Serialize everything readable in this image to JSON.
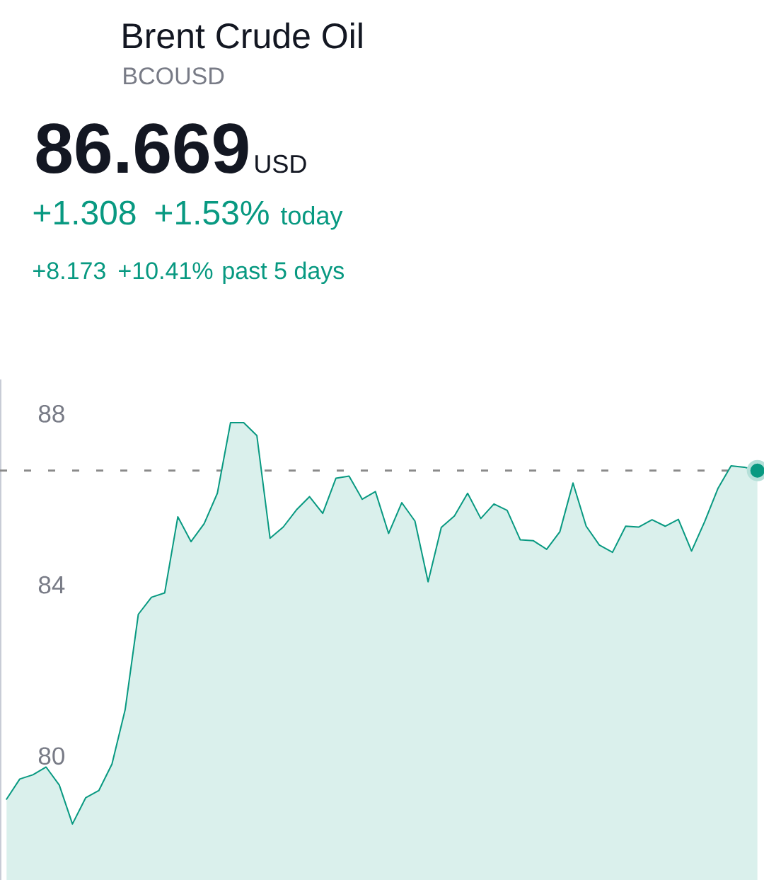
{
  "chart_data": {
    "type": "area",
    "title": "Brent Crude Oil",
    "subtitle": "BCOUSD",
    "annotations": [
      "86.669",
      "USD",
      "+1.308",
      "+1.53%",
      "today",
      "+8.173",
      "+10.41%",
      "past 5 days"
    ],
    "categories": [
      null,
      null,
      null,
      null,
      null,
      null,
      null,
      null,
      null,
      null,
      null,
      null,
      null,
      null,
      null,
      null,
      null,
      null,
      null,
      null,
      null,
      null,
      null,
      null,
      null,
      null,
      null,
      null,
      null,
      null,
      null,
      null,
      null,
      null,
      null,
      null,
      null,
      null,
      null,
      null,
      null,
      null,
      null,
      null,
      null,
      null,
      null,
      null,
      null,
      null,
      null,
      null,
      null,
      null,
      null,
      null,
      null,
      null
    ],
    "series": [
      {
        "color": "#089981",
        "values": [
          78.99,
          79.46,
          79.56,
          79.74,
          79.32,
          78.41,
          79.02,
          79.19,
          79.81,
          81.08,
          83.31,
          83.71,
          83.81,
          85.59,
          85.01,
          85.43,
          86.14,
          87.79,
          87.79,
          87.49,
          85.09,
          85.35,
          85.75,
          86.06,
          85.67,
          86.49,
          86.54,
          86.0,
          86.18,
          85.2,
          85.92,
          85.49,
          84.07,
          85.34,
          85.61,
          86.14,
          85.55,
          85.89,
          85.74,
          85.05,
          85.03,
          84.83,
          85.24,
          86.38,
          85.37,
          84.93,
          84.76,
          85.37,
          85.35,
          85.52,
          85.37,
          85.53,
          84.79,
          85.48,
          86.25,
          86.78,
          86.75,
          86.67
        ]
      },
      {
        "type": "scatter",
        "color": "#089981",
        "marker": "circle",
        "values": [
          null,
          null,
          null,
          null,
          null,
          null,
          null,
          null,
          null,
          null,
          null,
          null,
          null,
          null,
          null,
          null,
          null,
          null,
          null,
          null,
          null,
          null,
          null,
          null,
          null,
          null,
          null,
          null,
          null,
          null,
          null,
          null,
          null,
          null,
          null,
          null,
          null,
          null,
          null,
          null,
          null,
          null,
          null,
          null,
          null,
          null,
          null,
          null,
          null,
          null,
          null,
          null,
          null,
          null,
          null,
          null,
          null,
          86.67
        ]
      }
    ],
    "ylim": [
      77.1,
      88.8
    ],
    "yticks": [
      80,
      84,
      88
    ],
    "tick_labels": "y",
    "line_style": "solid",
    "ref_lines": [
      {
        "axis": "y",
        "value": 86.67,
        "color": "#8a8a8a",
        "line_style": "dashed"
      }
    ]
  }
}
